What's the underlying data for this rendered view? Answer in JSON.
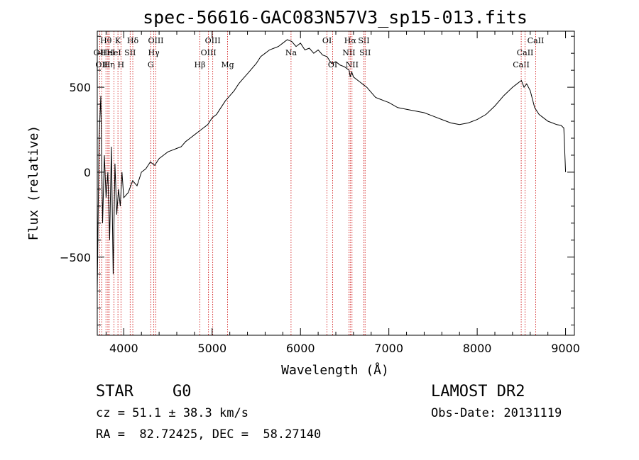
{
  "chart_data": {
    "type": "line",
    "title": "spec-56616-GAC083N57V3_sp15-013.fits",
    "xlabel": "Wavelength (Å)",
    "ylabel": "Flux (relative)",
    "xlim": [
      3700,
      9100
    ],
    "ylim": [
      -960,
      830
    ],
    "x_ticks": [
      4000,
      5000,
      6000,
      7000,
      8000,
      9000
    ],
    "y_ticks": [
      -500,
      0,
      500
    ],
    "grid": false,
    "line_color": "#000000",
    "marker_color": "#cc0000",
    "series": [
      {
        "x": [
          3700,
          3720,
          3740,
          3760,
          3780,
          3800,
          3820,
          3840,
          3860,
          3880,
          3900,
          3920,
          3940,
          3960,
          3980,
          4000,
          4050,
          4100,
          4150,
          4200,
          4250,
          4300,
          4350,
          4400,
          4450,
          4500,
          4550,
          4600,
          4650,
          4700,
          4750,
          4800,
          4850,
          4900,
          4950,
          5000,
          5050,
          5100,
          5150,
          5200,
          5250,
          5300,
          5350,
          5400,
          5450,
          5500,
          5550,
          5600,
          5650,
          5700,
          5750,
          5800,
          5850,
          5900,
          5950,
          6000,
          6050,
          6100,
          6150,
          6200,
          6250,
          6300,
          6350,
          6400,
          6450,
          6500,
          6550,
          6563,
          6580,
          6600,
          6650,
          6700,
          6750,
          6800,
          6850,
          6900,
          6950,
          7000,
          7100,
          7200,
          7300,
          7400,
          7500,
          7600,
          7700,
          7800,
          7900,
          8000,
          8100,
          8200,
          8300,
          8400,
          8450,
          8500,
          8530,
          8560,
          8600,
          8650,
          8700,
          8750,
          8800,
          8850,
          8900,
          8950,
          8980,
          9000
        ],
        "y": [
          -700,
          200,
          450,
          -300,
          100,
          -150,
          0,
          -400,
          150,
          -600,
          50,
          -250,
          -100,
          -200,
          0,
          -150,
          -120,
          -50,
          -80,
          0,
          20,
          60,
          40,
          80,
          100,
          120,
          130,
          140,
          150,
          180,
          200,
          220,
          240,
          260,
          280,
          320,
          340,
          380,
          420,
          450,
          480,
          520,
          550,
          580,
          610,
          640,
          680,
          700,
          720,
          730,
          740,
          760,
          780,
          770,
          740,
          760,
          720,
          730,
          700,
          720,
          690,
          680,
          640,
          650,
          630,
          620,
          600,
          560,
          590,
          560,
          540,
          520,
          500,
          470,
          440,
          430,
          420,
          410,
          380,
          370,
          360,
          350,
          330,
          310,
          290,
          280,
          290,
          310,
          340,
          390,
          450,
          500,
          520,
          540,
          500,
          520,
          480,
          380,
          340,
          320,
          300,
          290,
          280,
          275,
          260,
          0
        ]
      }
    ],
    "line_markers": [
      {
        "wavelength": 3728,
        "label": "OII",
        "row": 2
      },
      {
        "wavelength": 3750,
        "label": "OII",
        "row": 3
      },
      {
        "wavelength": 3798,
        "label": "Hθ",
        "row": 1
      },
      {
        "wavelength": 3820,
        "label": "HeI",
        "row": 2
      },
      {
        "wavelength": 3835,
        "label": "Hη",
        "row": 3
      },
      {
        "wavelength": 3889,
        "label": "HeI",
        "row": 2
      },
      {
        "wavelength": 3934,
        "label": "K",
        "row": 1
      },
      {
        "wavelength": 3968,
        "label": "H",
        "row": 3
      },
      {
        "wavelength": 4072,
        "label": "SII",
        "row": 2
      },
      {
        "wavelength": 4102,
        "label": "Hδ",
        "row": 1
      },
      {
        "wavelength": 4305,
        "label": "G",
        "row": 3
      },
      {
        "wavelength": 4340,
        "label": "Hγ",
        "row": 2
      },
      {
        "wavelength": 4363,
        "label": "OIII",
        "row": 1
      },
      {
        "wavelength": 4861,
        "label": "Hβ",
        "row": 3
      },
      {
        "wavelength": 4959,
        "label": "OIII",
        "row": 2
      },
      {
        "wavelength": 5007,
        "label": "OIII",
        "row": 1
      },
      {
        "wavelength": 5175,
        "label": "Mg",
        "row": 3
      },
      {
        "wavelength": 5893,
        "label": "Na",
        "row": 2
      },
      {
        "wavelength": 6300,
        "label": "OI",
        "row": 1
      },
      {
        "wavelength": 6364,
        "label": "OI",
        "row": 3
      },
      {
        "wavelength": 6548,
        "label": "NII",
        "row": 2
      },
      {
        "wavelength": 6563,
        "label": "Hα",
        "row": 1
      },
      {
        "wavelength": 6583,
        "label": "NII",
        "row": 3
      },
      {
        "wavelength": 6717,
        "label": "SII",
        "row": 1
      },
      {
        "wavelength": 6731,
        "label": "SII",
        "row": 2
      },
      {
        "wavelength": 8498,
        "label": "CaII",
        "row": 3
      },
      {
        "wavelength": 8542,
        "label": "CaII",
        "row": 2
      },
      {
        "wavelength": 8662,
        "label": "CaII",
        "row": 1
      }
    ]
  },
  "info": {
    "class_label": "STAR",
    "subclass": "G0",
    "survey": "LAMOST DR2",
    "cz": "cz = 51.1 ± 38.3 km/s",
    "obs_date": "Obs-Date: 20131119",
    "coords": "RA =  82.72425, DEC =  58.27140"
  }
}
